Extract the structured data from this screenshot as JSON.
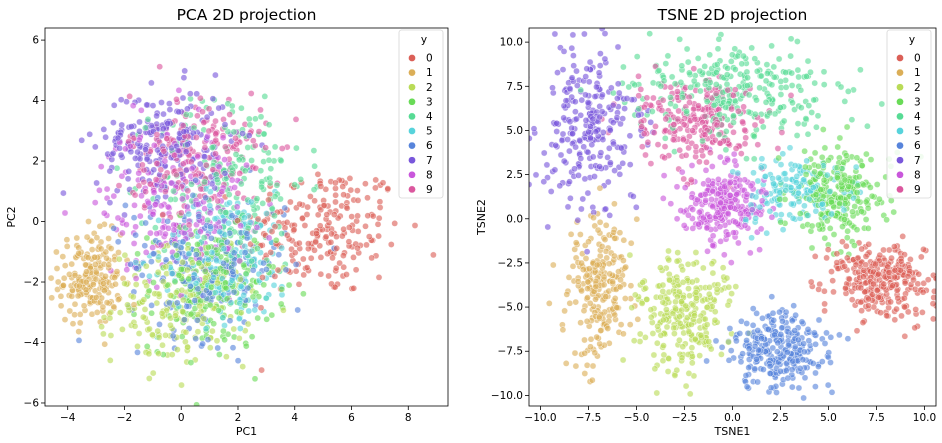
{
  "palette": [
    "#db5f57",
    "#dbae57",
    "#b9db57",
    "#69db57",
    "#57db94",
    "#57d3db",
    "#5784db",
    "#7957db",
    "#c957db",
    "#db579e"
  ],
  "chart_data": [
    {
      "type": "scatter",
      "title": "PCA 2D projection",
      "xlabel": "PC1",
      "ylabel": "PC2",
      "xlim": [
        -4.8,
        9.4
      ],
      "ylim": [
        -6.1,
        6.4
      ],
      "xticks": [
        -4,
        -2,
        0,
        2,
        4,
        6,
        8
      ],
      "xtick_labels": [
        "−4",
        "−2",
        "0",
        "2",
        "4",
        "6",
        "8"
      ],
      "yticks": [
        -6,
        -4,
        -2,
        0,
        2,
        4,
        6
      ],
      "ytick_labels": [
        "−6",
        "−4",
        "−2",
        "0",
        "2",
        "4",
        "6"
      ],
      "grid": false,
      "legend": {
        "title": "y",
        "placement": "upper-right",
        "entries": [
          "0",
          "1",
          "2",
          "3",
          "4",
          "5",
          "6",
          "7",
          "8",
          "9"
        ]
      },
      "clusters": [
        {
          "label": "0",
          "center": [
            5.0,
            -0.3
          ],
          "spread": [
            1.4,
            1.1
          ],
          "count": 220
        },
        {
          "label": "1",
          "center": [
            -3.2,
            -1.9
          ],
          "spread": [
            0.55,
            0.75
          ],
          "count": 200
        },
        {
          "label": "2",
          "center": [
            0.0,
            -2.8
          ],
          "spread": [
            1.2,
            0.95
          ],
          "count": 190
        },
        {
          "label": "3",
          "center": [
            1.1,
            -2.2
          ],
          "spread": [
            1.1,
            1.0
          ],
          "count": 200
        },
        {
          "label": "4",
          "center": [
            1.8,
            1.4
          ],
          "spread": [
            1.3,
            1.5
          ],
          "count": 190
        },
        {
          "label": "5",
          "center": [
            1.6,
            -1.2
          ],
          "spread": [
            1.2,
            1.1
          ],
          "count": 190
        },
        {
          "label": "6",
          "center": [
            0.9,
            -1.4
          ],
          "spread": [
            1.4,
            1.2
          ],
          "count": 200
        },
        {
          "label": "7",
          "center": [
            -0.6,
            2.6
          ],
          "spread": [
            1.2,
            0.9
          ],
          "count": 220
        },
        {
          "label": "8",
          "center": [
            -0.2,
            0.6
          ],
          "spread": [
            1.3,
            1.3
          ],
          "count": 210
        },
        {
          "label": "9",
          "center": [
            0.6,
            2.1
          ],
          "spread": [
            1.2,
            1.1
          ],
          "count": 200
        }
      ]
    },
    {
      "type": "scatter",
      "title": "TSNE 2D projection",
      "xlabel": "TSNE1",
      "ylabel": "TSNE2",
      "xlim": [
        -10.6,
        10.6
      ],
      "ylim": [
        -10.6,
        10.8
      ],
      "xticks": [
        -10,
        -7.5,
        -5,
        -2.5,
        0,
        2.5,
        5,
        7.5,
        10
      ],
      "xtick_labels": [
        "−10.0",
        "−7.5",
        "−5.0",
        "−2.5",
        "0.0",
        "2.5",
        "5.0",
        "7.5",
        "10.0"
      ],
      "yticks": [
        -10,
        -7.5,
        -5,
        -2.5,
        0,
        2.5,
        5,
        7.5,
        10
      ],
      "ytick_labels": [
        "−10.0",
        "−7.5",
        "−5.0",
        "−2.5",
        "0.0",
        "2.5",
        "5.0",
        "7.5",
        "10.0"
      ],
      "grid": false,
      "legend": {
        "title": "y",
        "placement": "upper-right",
        "entries": [
          "0",
          "1",
          "2",
          "3",
          "4",
          "5",
          "6",
          "7",
          "8",
          "9"
        ]
      },
      "clusters": [
        {
          "label": "0",
          "center": [
            7.8,
            -3.5
          ],
          "spread": [
            1.3,
            1.1
          ],
          "count": 300
        },
        {
          "label": "1",
          "center": [
            -6.9,
            -4.0
          ],
          "spread": [
            0.8,
            2.0
          ],
          "count": 230
        },
        {
          "label": "2",
          "center": [
            -2.6,
            -5.3
          ],
          "spread": [
            1.2,
            1.5
          ],
          "count": 260
        },
        {
          "label": "3",
          "center": [
            5.4,
            1.5
          ],
          "spread": [
            1.3,
            1.4
          ],
          "count": 250
        },
        {
          "label": "4",
          "center": [
            0.2,
            7.2
          ],
          "spread": [
            2.6,
            1.3
          ],
          "count": 280
        },
        {
          "label": "5",
          "center": [
            3.2,
            1.6
          ],
          "spread": [
            1.3,
            1.0
          ],
          "count": 160
        },
        {
          "label": "6",
          "center": [
            2.4,
            -7.4
          ],
          "spread": [
            1.3,
            1.1
          ],
          "count": 280
        },
        {
          "label": "7",
          "center": [
            -7.4,
            5.2
          ],
          "spread": [
            1.2,
            2.2
          ],
          "count": 260
        },
        {
          "label": "8",
          "center": [
            -0.5,
            0.9
          ],
          "spread": [
            1.1,
            1.1
          ],
          "count": 260
        },
        {
          "label": "9",
          "center": [
            -2.0,
            5.6
          ],
          "spread": [
            1.8,
            1.3
          ],
          "count": 230
        }
      ]
    }
  ]
}
